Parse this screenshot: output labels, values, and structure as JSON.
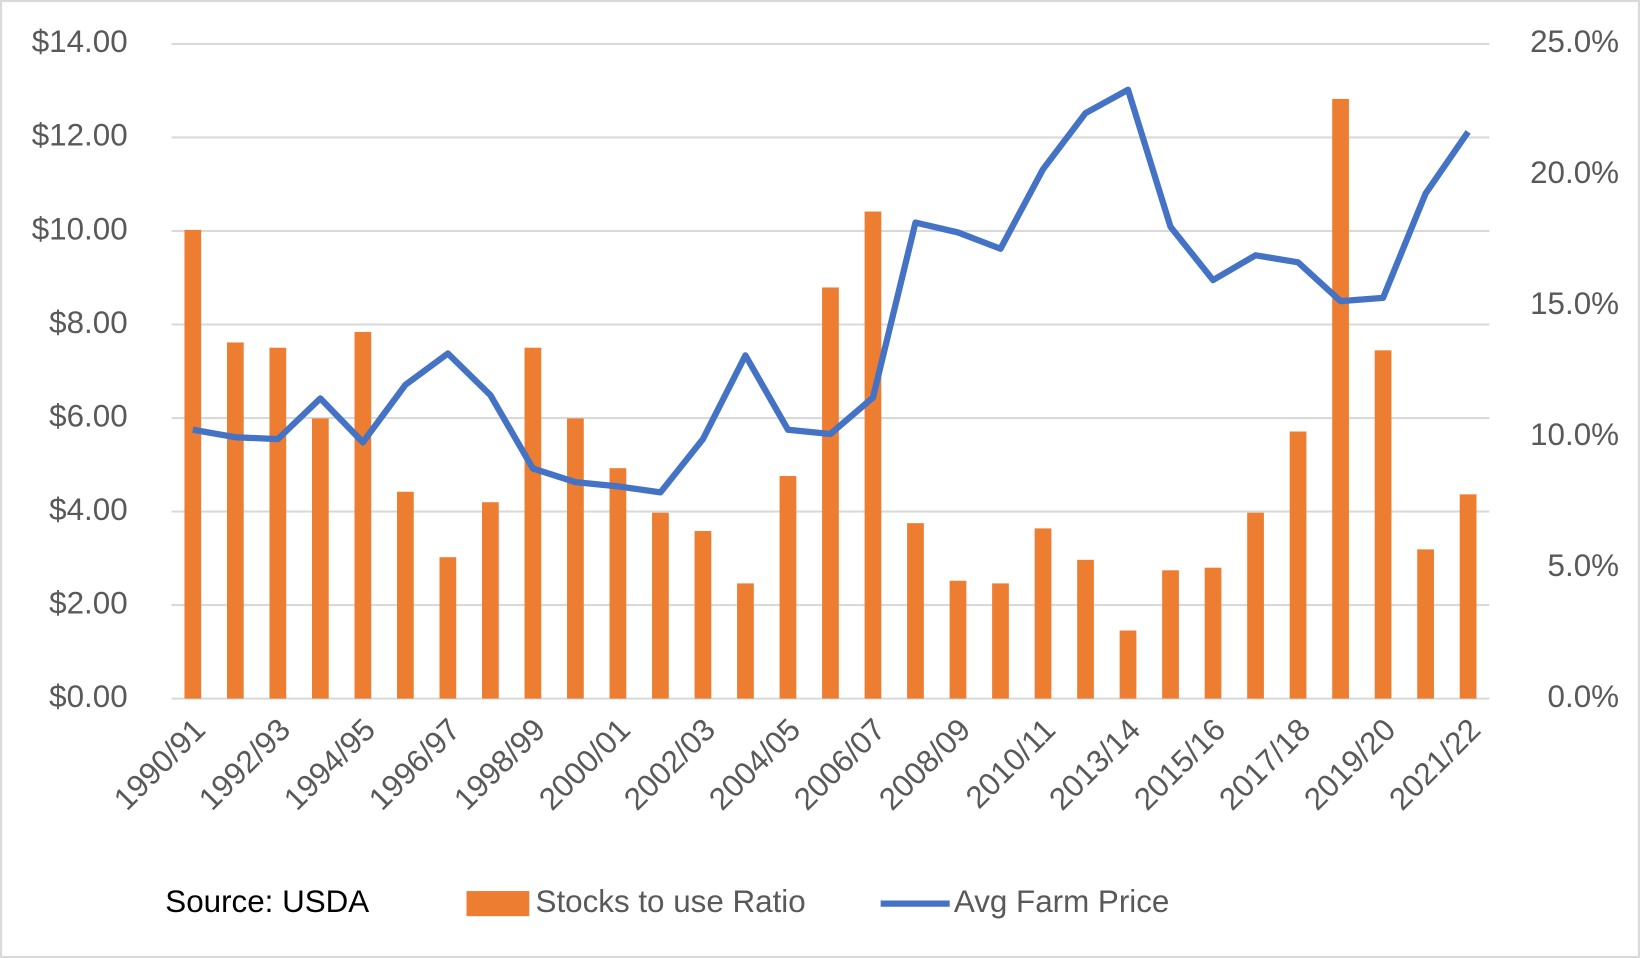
{
  "chart_data": {
    "type": "bar_line",
    "categories": [
      "1990/91",
      null,
      "1992/93",
      null,
      "1994/95",
      null,
      "1996/97",
      null,
      "1998/99",
      null,
      "2000/01",
      null,
      "2002/03",
      null,
      "2004/05",
      null,
      "2006/07",
      null,
      "2008/09",
      null,
      "2010/11",
      null,
      "2013/14",
      null,
      "2015/16",
      null,
      "2017/18",
      null,
      "2019/20",
      null,
      "2021/22"
    ],
    "series": [
      {
        "name": "Stocks to use Ratio",
        "type": "bar",
        "axis": "y2",
        "color": "#ed7d31",
        "values": [
          17.9,
          13.6,
          13.4,
          10.7,
          14.0,
          7.9,
          5.4,
          7.5,
          13.4,
          10.7,
          8.8,
          7.1,
          6.4,
          4.4,
          8.5,
          15.7,
          18.6,
          6.7,
          4.5,
          4.4,
          6.5,
          5.3,
          2.6,
          4.9,
          5.0,
          7.1,
          10.2,
          22.9,
          13.3,
          5.7,
          7.8
        ]
      },
      {
        "name": "Avg Farm Price",
        "type": "line",
        "axis": "y",
        "color": "#4472c4",
        "values": [
          5.75,
          5.59,
          5.55,
          6.42,
          5.48,
          6.71,
          7.38,
          6.49,
          4.92,
          4.63,
          4.54,
          4.41,
          5.55,
          7.34,
          5.75,
          5.66,
          6.44,
          10.18,
          9.97,
          9.62,
          11.32,
          12.52,
          13.02,
          10.09,
          8.95,
          9.48,
          9.33,
          8.5,
          8.57,
          10.8,
          12.12
        ]
      }
    ],
    "ylim": [
      0,
      14
    ],
    "yticks": [
      {
        "value": 0,
        "label": "$0.00"
      },
      {
        "value": 2,
        "label": "$2.00"
      },
      {
        "value": 4,
        "label": "$4.00"
      },
      {
        "value": 6,
        "label": "$6.00"
      },
      {
        "value": 8,
        "label": "$8.00"
      },
      {
        "value": 10,
        "label": "$10.00"
      },
      {
        "value": 12,
        "label": "$12.00"
      },
      {
        "value": 14,
        "label": "$14.00"
      }
    ],
    "y2lim": [
      0,
      25
    ],
    "y2ticks": [
      {
        "value": 0,
        "label": "0.0%"
      },
      {
        "value": 5,
        "label": "5.0%"
      },
      {
        "value": 10,
        "label": "10.0%"
      },
      {
        "value": 15,
        "label": "15.0%"
      },
      {
        "value": 20,
        "label": "20.0%"
      },
      {
        "value": 25,
        "label": "25.0%"
      }
    ],
    "grid": true,
    "annotation": "Source: USDA",
    "legend": "bottom"
  }
}
